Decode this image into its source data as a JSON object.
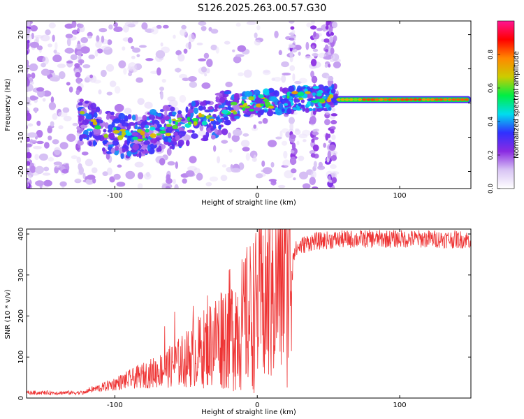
{
  "title": "S126.2025.263.00.57.G30",
  "chart_data": [
    {
      "type": "heatmap",
      "xlabel": "Height of straight line (km)",
      "ylabel": "Frequency (Hz)",
      "xlim": [
        -162,
        150
      ],
      "ylim": [
        -25,
        24
      ],
      "x_ticks": [
        -100,
        0,
        100
      ],
      "y_ticks": [
        -20,
        -10,
        0,
        10,
        20
      ],
      "colorbar": {
        "label": "Normalized spectral amplitude",
        "range": [
          0.0,
          1.0
        ],
        "ticks": [
          "0.0",
          "0.2",
          "0.4",
          "0.6",
          "0.8"
        ],
        "tick_values": [
          0.0,
          0.2,
          0.4,
          0.6,
          0.8
        ],
        "colors": [
          "#ffffff",
          "#d8c4f4",
          "#8a2be2",
          "#3030ff",
          "#00ddee",
          "#00ee44",
          "#cccc00",
          "#ff8800",
          "#ff0000",
          "#ff1493"
        ]
      },
      "ridge": {
        "description": "dominant frequency trend",
        "points": [
          [
            -125,
            -4
          ],
          [
            -110,
            -8
          ],
          [
            -90,
            -10
          ],
          [
            -70,
            -8
          ],
          [
            -50,
            -6
          ],
          [
            -30,
            -4
          ],
          [
            -15,
            -1
          ],
          [
            0,
            0
          ],
          [
            15,
            0.5
          ],
          [
            30,
            1.2
          ],
          [
            55,
            1.5
          ],
          [
            100,
            1.2
          ],
          [
            148,
            1.0
          ]
        ]
      },
      "strong_band": {
        "x_start": 55,
        "x_end": 150,
        "frequency": 1.0,
        "amplitude": 0.85
      },
      "vertical_streaks_x": [
        -162,
        -125,
        25,
        40,
        50,
        53
      ]
    },
    {
      "type": "line",
      "xlabel": "Height of straight line (km)",
      "ylabel": "SNR (10 * v/v)",
      "xlim": [
        -162,
        150
      ],
      "ylim": [
        0,
        412
      ],
      "x_ticks": [
        -100,
        0,
        100
      ],
      "y_ticks": [
        0,
        100,
        200,
        300,
        400
      ],
      "line_color": "#ee3333",
      "series": [
        {
          "name": "SNR",
          "trend_x": [
            -162,
            -130,
            -120,
            -110,
            -100,
            -90,
            -80,
            -70,
            -60,
            -50,
            -40,
            -30,
            -20,
            -15,
            -10,
            -5,
            0,
            5,
            10,
            15,
            20,
            25,
            30,
            35,
            40,
            50,
            60,
            80,
            100,
            120,
            150
          ],
          "trend_y": [
            10,
            12,
            18,
            25,
            35,
            45,
            55,
            65,
            78,
            95,
            115,
            140,
            165,
            175,
            185,
            200,
            215,
            240,
            270,
            300,
            330,
            355,
            370,
            378,
            382,
            385,
            387,
            388,
            388,
            388,
            386
          ],
          "spikes": [
            [
              -65,
              175
            ],
            [
              -58,
              210
            ],
            [
              -45,
              225
            ],
            [
              -35,
              250
            ],
            [
              -25,
              255
            ],
            [
              -18,
              265
            ],
            [
              -15,
              258
            ],
            [
              -10,
              245
            ],
            [
              4,
              396
            ],
            [
              5,
              60
            ],
            [
              10,
              330
            ]
          ]
        }
      ]
    }
  ]
}
